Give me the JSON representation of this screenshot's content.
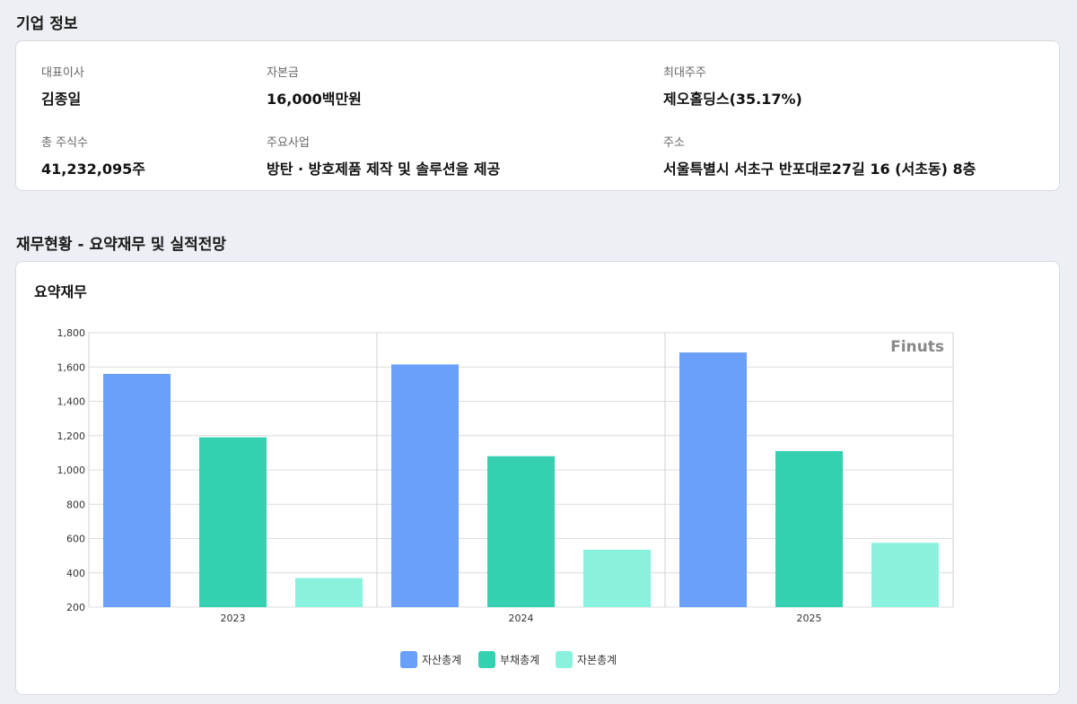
{
  "company_section": {
    "title": "기업 정보",
    "items": [
      {
        "label": "대표이사",
        "value": "김종일"
      },
      {
        "label": "자본금",
        "value": "16,000백만원"
      },
      {
        "label": "최대주주",
        "value": "제오홀딩스(35.17%)"
      },
      {
        "label": "총 주식수",
        "value": "41,232,095주"
      },
      {
        "label": "주요사업",
        "value": "방탄 · 방호제품 제작 및 솔루션을 제공"
      },
      {
        "label": "주소",
        "value": "서울특별시 서초구 반포대로27길 16 (서초동) 8층"
      }
    ]
  },
  "finance_section": {
    "title": "재무현황 - 요약재무 및 실적전망",
    "chart_title": "요약재무",
    "watermark": "Finuts"
  },
  "chart_data": {
    "type": "bar",
    "categories": [
      "2023",
      "2024",
      "2025"
    ],
    "series": [
      {
        "name": "자산총계",
        "values": [
          1560,
          1615,
          1685
        ],
        "color": "#6a9ffa"
      },
      {
        "name": "부채총계",
        "values": [
          1190,
          1080,
          1110
        ],
        "color": "#35d0b0"
      },
      {
        "name": "자본총계",
        "values": [
          370,
          535,
          575
        ],
        "color": "#8af2dc"
      }
    ],
    "ylim": [
      200,
      1800
    ],
    "yticks": [
      200,
      400,
      600,
      800,
      1000,
      1200,
      1400,
      1600,
      1800
    ],
    "ytick_labels": [
      "200",
      "400",
      "600",
      "800",
      "1,000",
      "1,200",
      "1,400",
      "1,600",
      "1,800"
    ],
    "grid": true,
    "legend": "bottom-center"
  }
}
